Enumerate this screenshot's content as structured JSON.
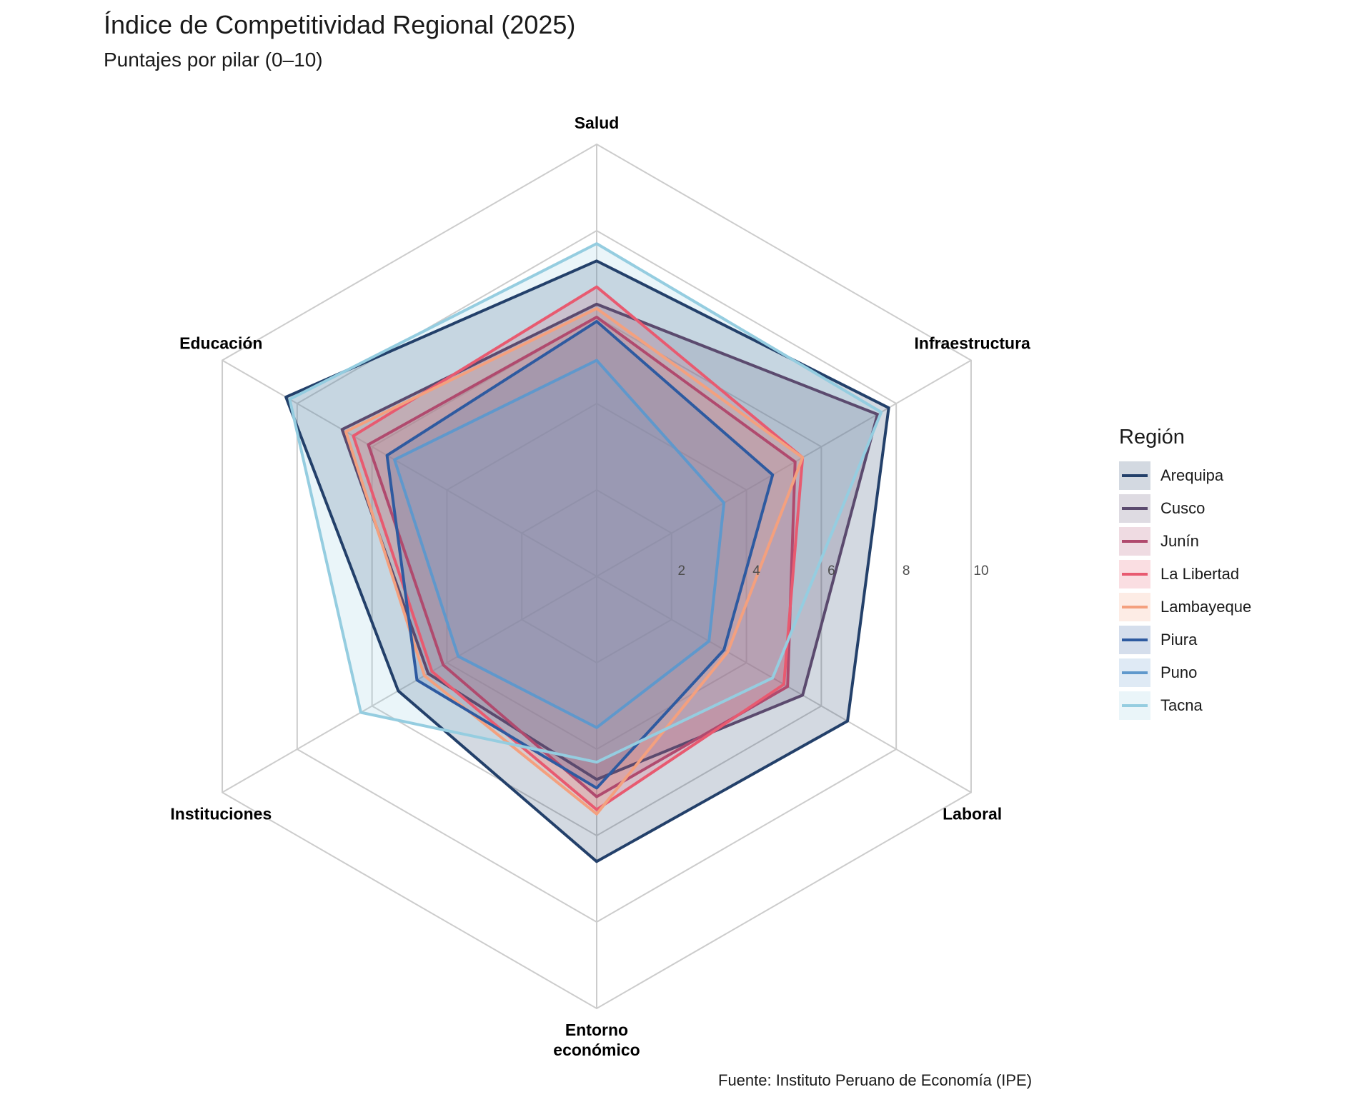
{
  "title": "Índice de Competitividad Regional (2025)",
  "subtitle": "Puntajes por pilar (0–10)",
  "caption": "Fuente: Instituto Peruano de Economía (IPE)",
  "legend_title": "Región",
  "chart_data": {
    "type": "radar",
    "axes": [
      "Salud",
      "Infraestructura",
      "Laboral",
      "Entorno\neconómico",
      "Instituciones",
      "Educación"
    ],
    "rlim": [
      0,
      10
    ],
    "rticks": [
      2,
      4,
      6,
      8,
      10
    ],
    "series": [
      {
        "name": "Arequipa",
        "color": "#23406a",
        "values": [
          7.3,
          7.8,
          6.7,
          6.6,
          5.3,
          8.3
        ]
      },
      {
        "name": "Cusco",
        "color": "#5b4a6e",
        "values": [
          6.3,
          7.5,
          5.5,
          4.7,
          4.5,
          6.8
        ]
      },
      {
        "name": "Junín",
        "color": "#b04a6e",
        "values": [
          6.0,
          5.3,
          5.1,
          5.1,
          4.1,
          6.1
        ]
      },
      {
        "name": "La Libertad",
        "color": "#e85a70",
        "values": [
          6.7,
          5.5,
          5.0,
          5.4,
          4.4,
          6.5
        ]
      },
      {
        "name": "Lambayeque",
        "color": "#f4a07e",
        "values": [
          6.2,
          5.5,
          3.5,
          5.5,
          4.6,
          6.7
        ]
      },
      {
        "name": "Piura",
        "color": "#2e5aa0",
        "values": [
          5.9,
          4.7,
          3.4,
          4.9,
          4.8,
          5.6
        ]
      },
      {
        "name": "Puno",
        "color": "#5f98cc",
        "values": [
          5.0,
          3.4,
          3.0,
          3.5,
          3.7,
          5.4
        ]
      },
      {
        "name": "Tacna",
        "color": "#95cde0",
        "values": [
          7.7,
          7.6,
          4.7,
          4.3,
          6.3,
          8.2
        ]
      }
    ]
  }
}
